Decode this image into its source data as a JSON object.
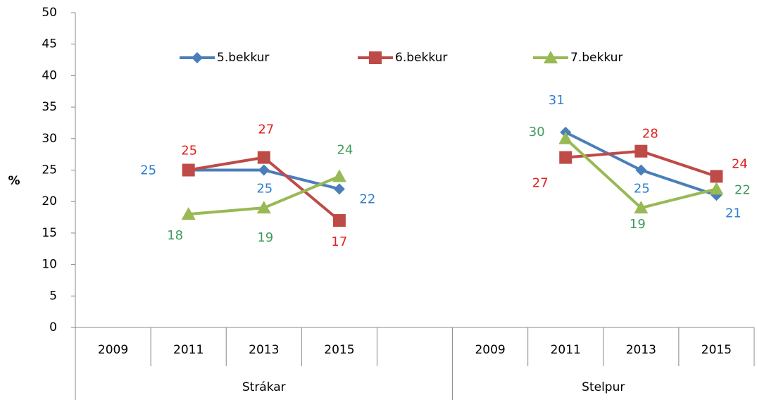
{
  "chart_data": {
    "type": "line",
    "y_label": "%",
    "categories": [
      "2009",
      "2011",
      "2013",
      "2015",
      null,
      "2009",
      "2011",
      "2013",
      "2015"
    ],
    "groups": [
      {
        "name": "Strákar",
        "span": 5
      },
      {
        "name": "Stelpur",
        "span": 4
      }
    ],
    "series": [
      {
        "name": "5.bekkur",
        "color": "#4a7ebb",
        "label_color": "#2f80d0",
        "marker": "diamond",
        "values": [
          null,
          25,
          25,
          22,
          null,
          null,
          31,
          25,
          21
        ]
      },
      {
        "name": "6.bekkur",
        "color": "#be4b48",
        "label_color": "#e0201e",
        "marker": "square",
        "values": [
          null,
          25,
          27,
          17,
          null,
          null,
          27,
          28,
          24
        ]
      },
      {
        "name": "7.bekkur",
        "color": "#98b954",
        "label_color": "#3f9a5e",
        "marker": "triangle",
        "values": [
          null,
          18,
          19,
          24,
          null,
          null,
          30,
          19,
          22
        ]
      }
    ],
    "ylim": [
      0,
      50
    ],
    "yticks": [
      0,
      5,
      10,
      15,
      20,
      25,
      30,
      35,
      40,
      45,
      50
    ],
    "grid": false,
    "legend": "top"
  }
}
